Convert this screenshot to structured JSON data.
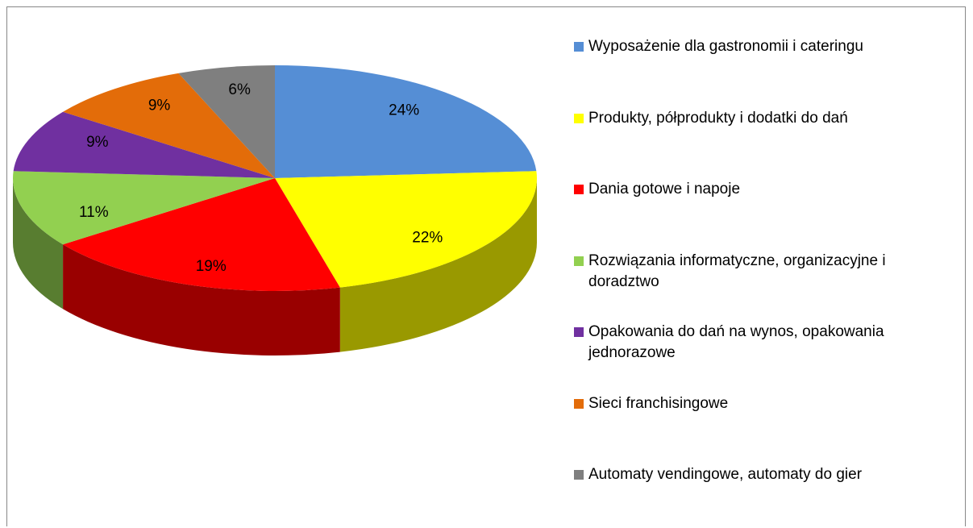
{
  "chart_data": {
    "type": "pie",
    "categories": [
      "Wyposażenie dla gastronomii i cateringu",
      "Produkty, półprodukty i dodatki do dań",
      "Dania gotowe i napoje",
      "Rozwiązania informatyczne, organizacyjne i doradztwo",
      "Opakowania do dań na wynos, opakowania jednorazowe",
      "Sieci franchisingowe",
      "Automaty vendingowe, automaty do gier"
    ],
    "values": [
      24,
      22,
      19,
      11,
      9,
      9,
      6
    ],
    "value_labels": [
      "24%",
      "22%",
      "19%",
      "11%",
      "9%",
      "9%",
      "6%"
    ],
    "colors": [
      "#558ed5",
      "#ffff00",
      "#ff0000",
      "#92d050",
      "#7030a0",
      "#e36c09",
      "#7f7f7f"
    ],
    "legend": "right"
  }
}
